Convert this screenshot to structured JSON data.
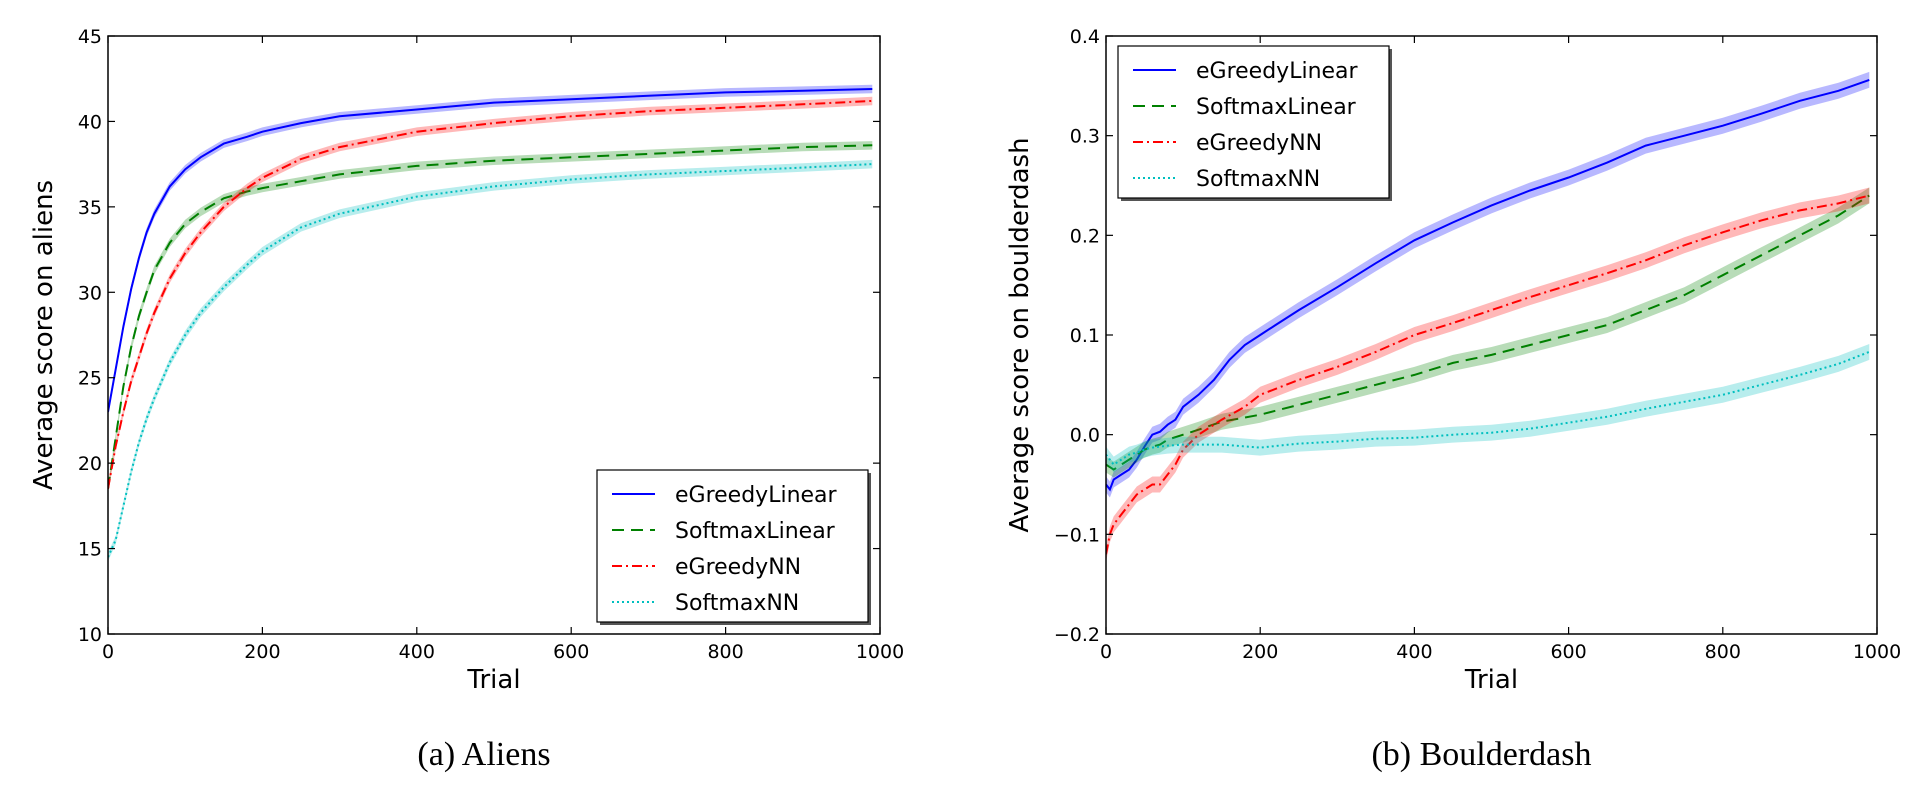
{
  "chart_data": [
    {
      "type": "line",
      "caption": "(a) Aliens",
      "xlabel": "Trial",
      "ylabel": "Average score on aliens",
      "xlim": [
        0,
        1000
      ],
      "ylim": [
        10,
        45
      ],
      "xticks": [
        0,
        200,
        400,
        600,
        800,
        1000
      ],
      "yticks": [
        10,
        15,
        20,
        25,
        30,
        35,
        40,
        45
      ],
      "legend_position": "bottom-right",
      "series": [
        {
          "name": "eGreedyLinear",
          "color": "#0000ff",
          "dash": "solid",
          "x": [
            0,
            10,
            20,
            30,
            40,
            50,
            60,
            80,
            100,
            120,
            150,
            180,
            200,
            250,
            300,
            400,
            500,
            600,
            700,
            800,
            900,
            990
          ],
          "y": [
            23,
            25.5,
            28,
            30.2,
            32,
            33.5,
            34.6,
            36.2,
            37.2,
            37.9,
            38.7,
            39.1,
            39.4,
            39.9,
            40.3,
            40.7,
            41.1,
            41.3,
            41.5,
            41.7,
            41.8,
            41.9
          ]
        },
        {
          "name": "SoftmaxLinear",
          "color": "#008000",
          "dash": "dashed",
          "x": [
            0,
            10,
            20,
            30,
            40,
            50,
            60,
            80,
            100,
            120,
            150,
            180,
            200,
            250,
            300,
            400,
            500,
            600,
            700,
            800,
            900,
            990
          ],
          "y": [
            18.5,
            21.5,
            24.5,
            26.8,
            28.6,
            30,
            31.3,
            32.9,
            34,
            34.7,
            35.5,
            35.9,
            36.1,
            36.5,
            36.9,
            37.4,
            37.7,
            37.9,
            38.1,
            38.3,
            38.5,
            38.6
          ]
        },
        {
          "name": "eGreedyNN",
          "color": "#ff0000",
          "dash": "dashdot",
          "x": [
            0,
            10,
            20,
            30,
            40,
            50,
            60,
            80,
            100,
            120,
            150,
            180,
            200,
            250,
            300,
            400,
            500,
            600,
            700,
            800,
            900,
            990
          ],
          "y": [
            18.5,
            21,
            23,
            24.8,
            26.2,
            27.6,
            28.8,
            30.8,
            32.3,
            33.5,
            35,
            36.1,
            36.7,
            37.8,
            38.5,
            39.4,
            39.9,
            40.3,
            40.6,
            40.8,
            41,
            41.2
          ]
        },
        {
          "name": "SoftmaxNN",
          "color": "#00bfbf",
          "dash": "dotted",
          "x": [
            0,
            10,
            20,
            30,
            40,
            50,
            60,
            80,
            100,
            120,
            150,
            180,
            200,
            250,
            300,
            400,
            500,
            600,
            700,
            800,
            900,
            990
          ],
          "y": [
            14.5,
            15.5,
            17.5,
            19.5,
            21.2,
            22.6,
            23.8,
            25.9,
            27.5,
            28.8,
            30.3,
            31.6,
            32.4,
            33.8,
            34.6,
            35.6,
            36.2,
            36.6,
            36.9,
            37.1,
            37.3,
            37.5
          ]
        }
      ]
    },
    {
      "type": "line",
      "caption": "(b) Boulderdash",
      "xlabel": "Trial",
      "ylabel": "Average score on boulderdash",
      "xlim": [
        0,
        1000
      ],
      "ylim": [
        -0.2,
        0.4
      ],
      "xticks": [
        0,
        200,
        400,
        600,
        800,
        1000
      ],
      "yticks": [
        -0.2,
        -0.1,
        0.0,
        0.1,
        0.2,
        0.3,
        0.4
      ],
      "ytick_labels": [
        "−0.2",
        "−0.1",
        "0.0",
        "0.1",
        "0.2",
        "0.3",
        "0.4"
      ],
      "legend_position": "top-left",
      "series": [
        {
          "name": "eGreedyLinear",
          "color": "#0000ff",
          "dash": "solid",
          "x": [
            0,
            5,
            10,
            20,
            30,
            40,
            50,
            60,
            70,
            80,
            90,
            100,
            120,
            140,
            160,
            180,
            200,
            220,
            250,
            300,
            350,
            400,
            450,
            500,
            550,
            600,
            650,
            700,
            750,
            800,
            850,
            900,
            950,
            990
          ],
          "y": [
            -0.05,
            -0.055,
            -0.045,
            -0.04,
            -0.035,
            -0.025,
            -0.012,
            0.0,
            0.003,
            0.01,
            0.015,
            0.028,
            0.04,
            0.055,
            0.075,
            0.09,
            0.1,
            0.11,
            0.125,
            0.148,
            0.172,
            0.195,
            0.213,
            0.23,
            0.245,
            0.258,
            0.273,
            0.29,
            0.3,
            0.31,
            0.322,
            0.335,
            0.345,
            0.356
          ]
        },
        {
          "name": "SoftmaxLinear",
          "color": "#008000",
          "dash": "dashed",
          "x": [
            0,
            10,
            20,
            30,
            40,
            50,
            60,
            70,
            80,
            100,
            120,
            150,
            200,
            250,
            300,
            350,
            400,
            450,
            500,
            550,
            600,
            650,
            700,
            750,
            800,
            850,
            900,
            950,
            990
          ],
          "y": [
            -0.03,
            -0.035,
            -0.03,
            -0.025,
            -0.02,
            -0.015,
            -0.012,
            -0.01,
            -0.005,
            0.0,
            0.005,
            0.013,
            0.02,
            0.03,
            0.04,
            0.05,
            0.06,
            0.072,
            0.08,
            0.09,
            0.1,
            0.11,
            0.125,
            0.14,
            0.16,
            0.18,
            0.2,
            0.22,
            0.24
          ]
        },
        {
          "name": "eGreedyNN",
          "color": "#ff0000",
          "dash": "dashdot",
          "x": [
            0,
            5,
            10,
            20,
            30,
            40,
            50,
            60,
            70,
            80,
            90,
            100,
            120,
            150,
            180,
            200,
            250,
            300,
            350,
            400,
            450,
            500,
            550,
            600,
            650,
            700,
            750,
            800,
            850,
            900,
            950,
            990
          ],
          "y": [
            -0.12,
            -0.1,
            -0.09,
            -0.08,
            -0.07,
            -0.06,
            -0.055,
            -0.05,
            -0.05,
            -0.04,
            -0.03,
            -0.015,
            0.0,
            0.015,
            0.028,
            0.04,
            0.055,
            0.068,
            0.083,
            0.1,
            0.112,
            0.125,
            0.138,
            0.15,
            0.162,
            0.175,
            0.19,
            0.203,
            0.215,
            0.225,
            0.232,
            0.24
          ]
        },
        {
          "name": "SoftmaxNN",
          "color": "#00bfbf",
          "dash": "dotted",
          "x": [
            0,
            10,
            20,
            30,
            40,
            50,
            60,
            80,
            100,
            120,
            150,
            200,
            250,
            300,
            350,
            400,
            450,
            500,
            550,
            600,
            650,
            700,
            750,
            800,
            850,
            900,
            950,
            990
          ],
          "y": [
            -0.02,
            -0.03,
            -0.025,
            -0.02,
            -0.018,
            -0.015,
            -0.013,
            -0.011,
            -0.01,
            -0.01,
            -0.01,
            -0.013,
            -0.009,
            -0.007,
            -0.004,
            -0.003,
            0.0,
            0.002,
            0.006,
            0.012,
            0.018,
            0.026,
            0.033,
            0.04,
            0.05,
            0.06,
            0.071,
            0.083
          ]
        }
      ]
    }
  ]
}
